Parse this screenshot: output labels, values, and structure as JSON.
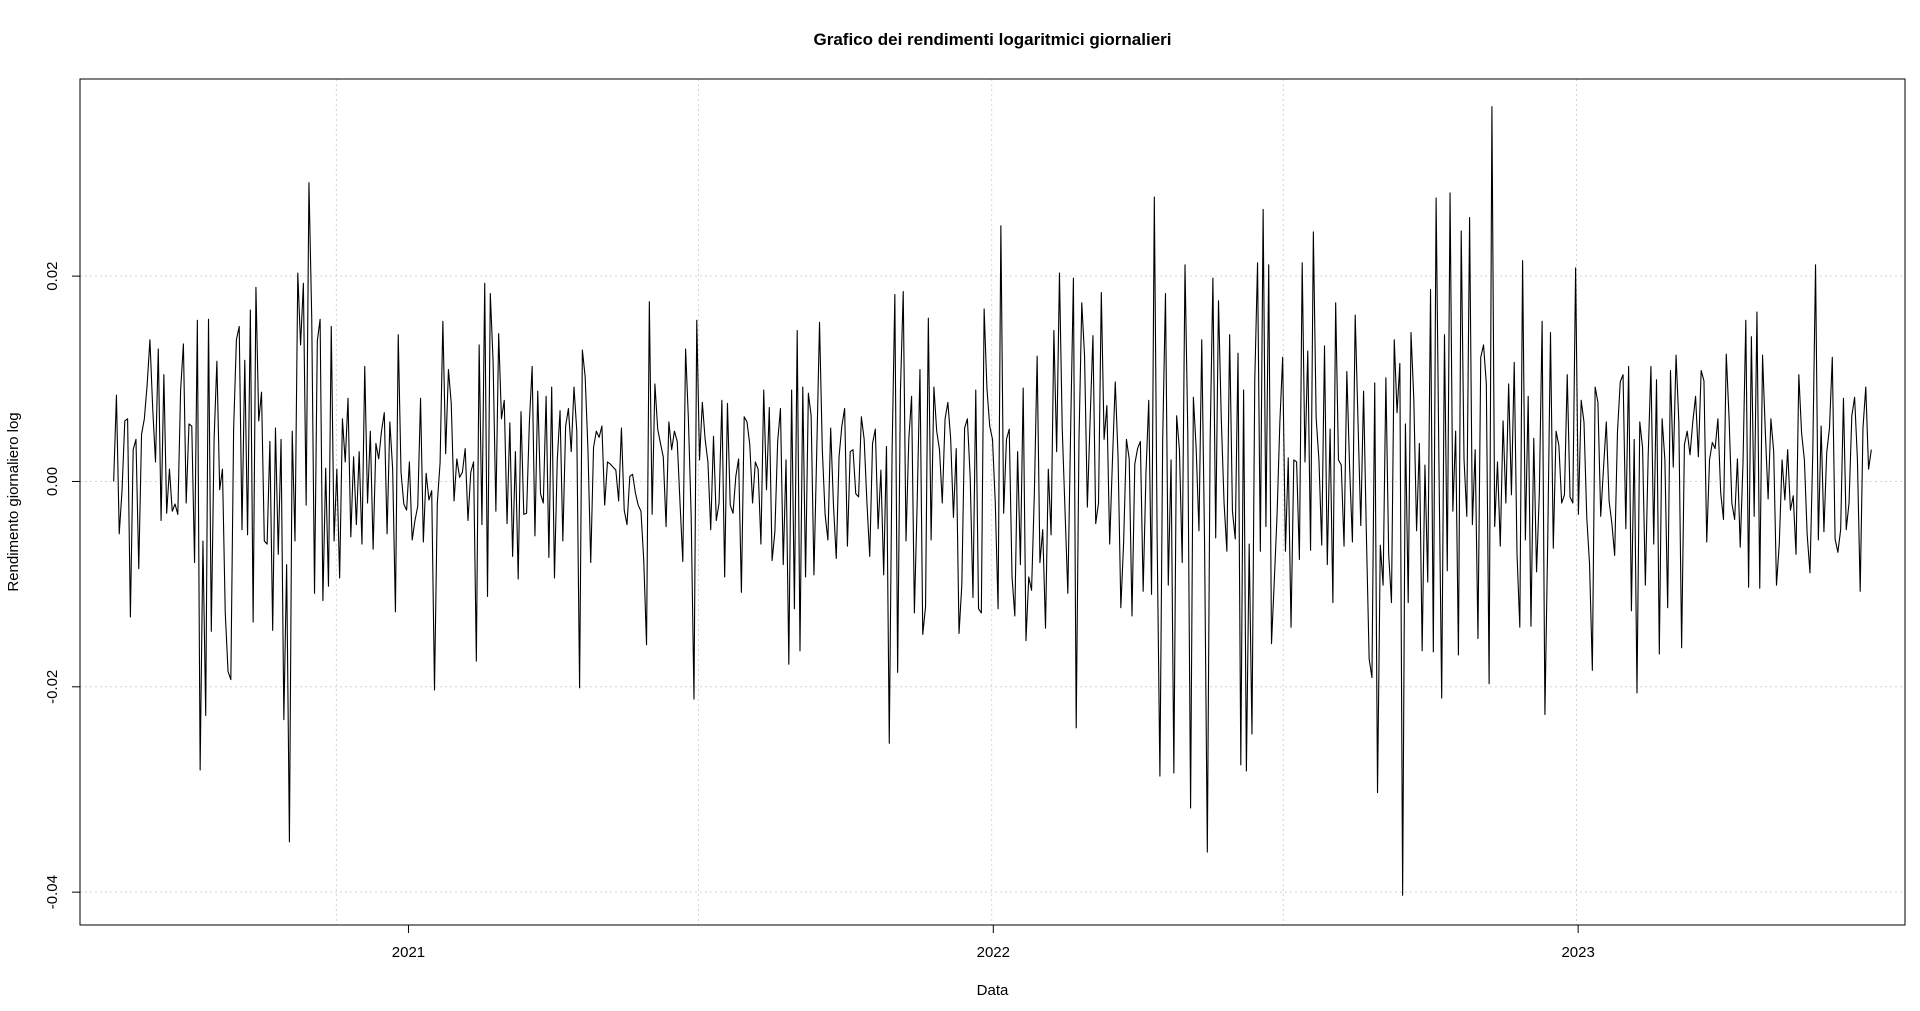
{
  "colors": {
    "background": "#ffffff",
    "line": "#000000",
    "grid": "#d3d3d3",
    "frame": "#000000"
  },
  "chart_data": {
    "type": "line",
    "title": "Grafico dei rendimenti logaritmici giornalieri",
    "xlabel": "Data",
    "ylabel": "Rendimento giornaliero log",
    "x_start": "2020-07-01",
    "x_end": "2023-07-03",
    "xlim": [
      "2020-06-10",
      "2023-07-24"
    ],
    "ylim": [
      -0.0432,
      0.0392
    ],
    "x_ticks": [
      {
        "date": "2021-01-01",
        "label": "2021"
      },
      {
        "date": "2022-01-01",
        "label": "2022"
      },
      {
        "date": "2023-01-01",
        "label": "2023"
      }
    ],
    "y_ticks": [
      {
        "value": -0.04,
        "label": "-0.04"
      },
      {
        "value": -0.02,
        "label": "-0.02"
      },
      {
        "value": 0.0,
        "label": "0.00"
      },
      {
        "value": 0.02,
        "label": "0.02"
      }
    ],
    "grid_x_dates": [
      "2020-11-17",
      "2021-07-01",
      "2021-12-31",
      "2022-07-01",
      "2022-12-31"
    ],
    "grid_y": [
      -0.04,
      -0.02,
      0.0,
      0.02
    ],
    "grid": true,
    "line_style": "dotted-grid, solid-series",
    "series": [
      {
        "values": [
          0.0,
          0.0084,
          -0.0051,
          -0.0009,
          0.0059,
          0.0061,
          -0.0132,
          0.0031,
          0.0041,
          -0.0085,
          0.0046,
          0.0061,
          0.0094,
          0.0138,
          0.0071,
          0.0019,
          0.0129,
          -0.0038,
          0.0104,
          -0.0031,
          0.0012,
          -0.0029,
          -0.0022,
          -0.0032,
          0.0089,
          0.0134,
          -0.0021,
          0.0056,
          0.0054,
          -0.0079,
          0.0157,
          -0.0281,
          -0.0058,
          -0.0228,
          0.0158,
          -0.0146,
          0.0041,
          0.0117,
          -0.0008,
          0.0012,
          -0.0128,
          -0.0185,
          -0.0193,
          0.0051,
          0.0138,
          0.0151,
          -0.0047,
          0.0118,
          -0.0052,
          0.0167,
          -0.0137,
          0.0189,
          0.0059,
          0.0087,
          -0.0058,
          -0.0061,
          0.0039,
          -0.0145,
          0.0052,
          -0.0071,
          0.0041,
          -0.0232,
          -0.0081,
          -0.0351,
          0.0049,
          -0.0058,
          0.0203,
          0.0133,
          0.0193,
          -0.0023,
          0.0291,
          0.0159,
          -0.0109,
          0.0137,
          0.0158,
          -0.0116,
          0.0013,
          -0.0102,
          0.0151,
          -0.0058,
          0.0012,
          -0.0094,
          0.0061,
          0.0019,
          0.0081,
          -0.0054,
          0.0024,
          -0.0042,
          0.0029,
          -0.0061,
          0.0112,
          -0.0021,
          0.0049,
          -0.0066,
          0.0037,
          0.0022,
          0.0049,
          0.0067,
          -0.0051,
          0.0058,
          0.0012,
          -0.0127,
          0.0143,
          0.0009,
          -0.0022,
          -0.0028,
          0.0019,
          -0.0057,
          -0.0038,
          -0.0024,
          0.0081,
          -0.0059,
          0.0008,
          -0.0018,
          -0.0009,
          -0.0203,
          -0.0021,
          0.0018,
          0.0156,
          0.0027,
          0.0109,
          0.0076,
          -0.0019,
          0.0022,
          0.0004,
          0.0009,
          0.0032,
          -0.0038,
          0.0009,
          0.0019,
          -0.0175,
          0.0133,
          -0.0042,
          0.0193,
          -0.0112,
          0.0183,
          0.0117,
          -0.0029,
          0.0144,
          0.0061,
          0.0079,
          -0.0041,
          0.0057,
          -0.0073,
          0.0029,
          -0.0095,
          0.0068,
          -0.0032,
          -0.0031,
          0.0057,
          0.0112,
          -0.0053,
          0.0088,
          -0.0012,
          -0.0021,
          0.0083,
          -0.0074,
          0.0092,
          -0.0094,
          0.0021,
          0.0069,
          -0.0058,
          0.0054,
          0.0071,
          0.0029,
          0.0092,
          0.0049,
          -0.0201,
          0.0128,
          0.0102,
          0.0031,
          -0.0079,
          0.0033,
          0.0049,
          0.0043,
          0.0054,
          -0.0023,
          0.0019,
          0.0017,
          0.0014,
          0.0011,
          -0.0019,
          0.0052,
          -0.0028,
          -0.0042,
          0.0005,
          0.0007,
          -0.0011,
          -0.0023,
          -0.0029,
          -0.0077,
          -0.0159,
          0.0175,
          -0.0032,
          0.0095,
          0.0051,
          0.0037,
          0.0024,
          -0.0044,
          0.0058,
          0.0031,
          0.0049,
          0.0039,
          -0.0021,
          -0.0078,
          0.0129,
          0.0061,
          -0.0034,
          -0.0212,
          0.0157,
          0.0021,
          0.0077,
          0.0041,
          0.0019,
          -0.0047,
          0.0044,
          -0.0038,
          -0.0021,
          0.0079,
          -0.0093,
          0.0076,
          -0.0023,
          -0.0031,
          0.0005,
          0.0022,
          -0.0108,
          0.0063,
          0.0058,
          0.0036,
          -0.0021,
          0.0019,
          0.0012,
          -0.0061,
          0.0089,
          -0.0008,
          0.0072,
          -0.0077,
          -0.0049,
          0.0039,
          0.0071,
          -0.0081,
          0.0021,
          -0.0178,
          0.0089,
          -0.0124,
          0.0147,
          -0.0165,
          0.0092,
          -0.0093,
          0.0086,
          0.0064,
          -0.0091,
          0.0029,
          0.0155,
          0.0031,
          -0.0032,
          -0.0057,
          0.0052,
          -0.0023,
          -0.0075,
          0.0024,
          0.0054,
          0.0071,
          -0.0063,
          0.0029,
          0.0031,
          -0.0012,
          -0.0015,
          0.0063,
          0.0041,
          -0.0021,
          -0.0073,
          0.0037,
          0.0051,
          -0.0046,
          0.0011,
          -0.0091,
          0.0034,
          -0.0255,
          0.0027,
          0.0182,
          -0.0186,
          0.0088,
          0.0185,
          -0.0058,
          0.0041,
          0.0083,
          -0.0128,
          -0.0021,
          0.0109,
          -0.0149,
          -0.0122,
          0.0159,
          -0.0057,
          0.0092,
          0.0049,
          0.0031,
          -0.0021,
          0.0061,
          0.0077,
          0.0042,
          -0.0035,
          0.0032,
          -0.0148,
          -0.0101,
          0.0052,
          0.0061,
          0.0004,
          -0.0113,
          0.0089,
          -0.0124,
          -0.0128,
          0.0168,
          0.0091,
          0.0054,
          0.0041,
          -0.0021,
          -0.0124,
          0.0249,
          -0.0031,
          0.0041,
          0.0051,
          -0.0093,
          -0.0131,
          0.0029,
          -0.0081,
          0.0091,
          -0.0155,
          -0.0093,
          -0.0106,
          -0.0012,
          0.0122,
          -0.0079,
          -0.0047,
          -0.0143,
          0.0012,
          -0.0052,
          0.0147,
          0.0029,
          0.0203,
          0.0051,
          -0.0029,
          -0.0109,
          0.0049,
          0.0198,
          -0.024,
          0.0041,
          0.0174,
          0.0122,
          -0.0025,
          0.0061,
          0.0142,
          -0.0041,
          -0.0021,
          0.0184,
          0.0041,
          0.0074,
          -0.0061,
          0.0021,
          0.0097,
          0.0024,
          -0.0123,
          -0.0059,
          0.0041,
          0.0022,
          -0.0131,
          0.0017,
          0.0032,
          0.0039,
          -0.0107,
          0.0007,
          0.0079,
          -0.011,
          0.0277,
          -0.0052,
          -0.0287,
          0.0041,
          0.0183,
          -0.0101,
          0.0021,
          -0.0284,
          0.0064,
          0.0031,
          -0.0079,
          0.0211,
          0.0046,
          -0.0318,
          0.0082,
          0.0032,
          -0.0048,
          0.0138,
          -0.0058,
          -0.0361,
          0.0039,
          0.0198,
          -0.0055,
          0.0176,
          0.0061,
          -0.0021,
          -0.0068,
          0.0143,
          -0.0029,
          -0.0056,
          0.0125,
          -0.0276,
          0.0089,
          -0.0282,
          -0.0061,
          -0.0246,
          0.0098,
          0.0213,
          -0.0068,
          0.0265,
          -0.0044,
          0.0211,
          -0.0158,
          -0.0097,
          -0.0032,
          0.0058,
          0.0121,
          -0.0068,
          0.0023,
          -0.0142,
          0.0021,
          0.0019,
          -0.0076,
          0.0213,
          0.0019,
          0.0127,
          -0.0067,
          0.0243,
          0.0062,
          0.0021,
          -0.0062,
          0.0132,
          -0.0081,
          0.0051,
          -0.0118,
          0.0174,
          0.0021,
          0.0016,
          -0.0063,
          0.0107,
          0.0013,
          -0.0059,
          0.0162,
          0.0059,
          -0.0043,
          0.0088,
          -0.0051,
          -0.0173,
          -0.0191,
          0.0096,
          -0.0303,
          -0.0062,
          -0.0101,
          0.0101,
          -0.0071,
          -0.0118,
          0.0138,
          0.0067,
          0.0115,
          -0.0403,
          0.0056,
          -0.0118,
          0.0145,
          0.0081,
          -0.0048,
          0.0037,
          -0.0165,
          0.0016,
          -0.0098,
          0.0187,
          -0.0166,
          0.0276,
          0.0021,
          -0.0211,
          0.0143,
          -0.0087,
          0.0281,
          -0.0029,
          0.0049,
          -0.0169,
          0.0244,
          0.0022,
          -0.0034,
          0.0257,
          -0.0042,
          0.0031,
          -0.0153,
          0.0121,
          0.0133,
          0.0095,
          -0.0197,
          0.0365,
          -0.0044,
          0.0019,
          -0.0063,
          0.0059,
          -0.0021,
          0.0095,
          -0.0013,
          0.0116,
          -0.0071,
          -0.0142,
          0.0215,
          -0.0057,
          0.0083,
          -0.0141,
          0.0042,
          -0.0088,
          -0.0011,
          0.0156,
          -0.0227,
          -0.0059,
          0.0145,
          -0.0065,
          0.0049,
          0.0035,
          -0.0021,
          -0.0013,
          0.0104,
          -0.0015,
          -0.0021,
          0.0208,
          -0.0032,
          0.0079,
          0.0058,
          -0.0035,
          -0.0081,
          -0.0184,
          0.0092,
          0.0077,
          -0.0034,
          0.0013,
          0.0058,
          -0.0019,
          -0.0041,
          -0.0072,
          0.0048,
          0.0097,
          0.0104,
          -0.0046,
          0.0112,
          -0.0126,
          0.0041,
          -0.0206,
          0.0058,
          0.0033,
          -0.0101,
          0.0024,
          0.0112,
          -0.0061,
          0.0099,
          -0.0168,
          0.0061,
          0.0021,
          -0.0123,
          0.0108,
          0.0014,
          0.0123,
          0.0058,
          -0.0162,
          0.0036,
          0.0049,
          0.0026,
          0.0058,
          0.0083,
          0.0024,
          0.0108,
          0.0098,
          -0.0059,
          0.0021,
          0.0038,
          0.0032,
          0.0061,
          -0.0011,
          -0.0037,
          0.0124,
          0.0062,
          -0.0021,
          -0.0037,
          0.0022,
          -0.0064,
          0.0018,
          0.0157,
          -0.0103,
          0.0141,
          -0.0034,
          0.0165,
          -0.0104,
          0.0123,
          0.0048,
          -0.0017,
          0.0061,
          0.0029,
          -0.0101,
          -0.0061,
          0.0021,
          -0.0018,
          0.0031,
          -0.0028,
          -0.0014,
          -0.0071,
          0.0104,
          0.0047,
          0.0021,
          -0.0052,
          -0.0089,
          0.0027,
          0.0211,
          -0.0057,
          0.0054,
          -0.0049,
          0.0028,
          0.0052,
          0.0121,
          -0.0056,
          -0.0069,
          -0.0047,
          0.0081,
          -0.0047,
          -0.0021,
          0.0064,
          0.0082,
          0.0022,
          -0.0107,
          0.0052,
          0.0092,
          0.0012,
          0.0031
        ]
      }
    ]
  }
}
